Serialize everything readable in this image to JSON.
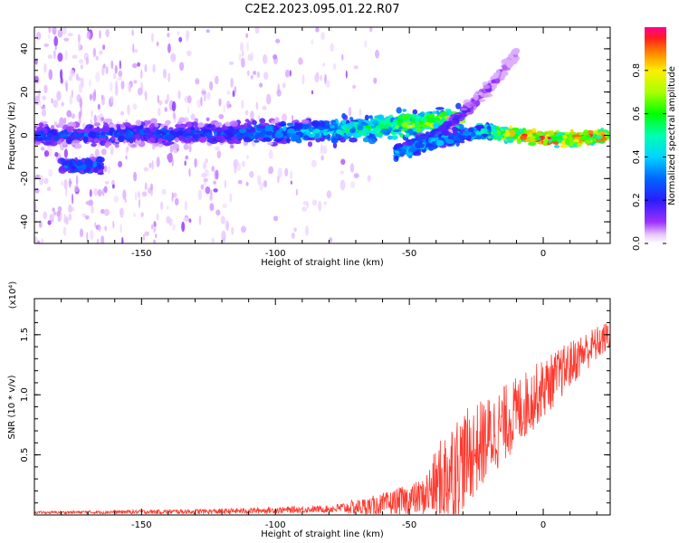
{
  "title": "C2E2.2023.095.01.22.R07",
  "chart_data": [
    {
      "type": "heatmap",
      "title": "C2E2.2023.095.01.22.R07",
      "xlabel": "Height of straight line (km)",
      "ylabel": "Frequency (Hz)",
      "xlim": [
        -190,
        25
      ],
      "ylim": [
        -50,
        50
      ],
      "xticks": [
        -150,
        -100,
        -50,
        0
      ],
      "yticks": [
        -40,
        -20,
        0,
        20,
        40
      ],
      "colorbar": {
        "label": "Normalized spectral amplitude",
        "range": [
          0.0,
          1.0
        ],
        "ticks": [
          "0.0",
          "0.2",
          "0.4",
          "0.6",
          "0.8"
        ],
        "colormap": "rainbow (white-purple-blue-cyan-green-yellow-red-magenta)"
      },
      "features": [
        {
          "name": "main_band",
          "x": [
            -190,
            -120,
            -80,
            -50,
            -30
          ],
          "y": [
            0,
            1,
            2,
            5,
            8
          ],
          "amplitude": [
            0.3,
            0.35,
            0.5,
            0.75,
            0.85
          ]
        },
        {
          "name": "right_band",
          "x": [
            -25,
            -10,
            0,
            10,
            24
          ],
          "y": [
            2,
            0,
            -1,
            -2,
            0
          ],
          "amplitude": [
            0.7,
            0.9,
            1.0,
            0.95,
            0.95
          ]
        },
        {
          "name": "upper_branch",
          "x": [
            -55,
            -40,
            -30,
            -20,
            -10
          ],
          "y": [
            -8,
            0,
            10,
            22,
            38
          ],
          "amplitude": [
            0.4,
            0.3,
            0.2,
            0.15,
            0.1
          ]
        },
        {
          "name": "lower_branch",
          "x": [
            -50,
            -40,
            -30,
            -20
          ],
          "y": [
            -7,
            -3,
            0,
            2
          ],
          "amplitude": [
            0.5,
            0.45,
            0.4,
            0.55
          ]
        },
        {
          "name": "left_blob",
          "x": [
            -180,
            -165
          ],
          "y": [
            -14,
            -14
          ],
          "amplitude": [
            0.35,
            0.35
          ]
        }
      ]
    },
    {
      "type": "line",
      "xlabel": "Height of straight line (km)",
      "ylabel": "SNR (10 * v/v)",
      "yscale_label": "(x10⁴)",
      "xlim": [
        -190,
        25
      ],
      "ylim": [
        0,
        1.8
      ],
      "xticks": [
        -150,
        -100,
        -50,
        0
      ],
      "yticks": [
        0.5,
        1.0,
        1.5
      ],
      "color": "#ff3b30",
      "trend": {
        "x": [
          -190,
          -120,
          -80,
          -60,
          -45,
          -35,
          -25,
          -15,
          -5,
          5,
          15,
          25
        ],
        "y": [
          0.02,
          0.03,
          0.05,
          0.08,
          0.15,
          0.35,
          0.55,
          0.75,
          0.95,
          1.15,
          1.35,
          1.5
        ]
      },
      "spread": {
        "x": [
          -190,
          -80,
          -45,
          -35,
          -20,
          0,
          25
        ],
        "y": [
          0.01,
          0.03,
          0.15,
          0.45,
          0.35,
          0.25,
          0.12
        ]
      }
    }
  ]
}
